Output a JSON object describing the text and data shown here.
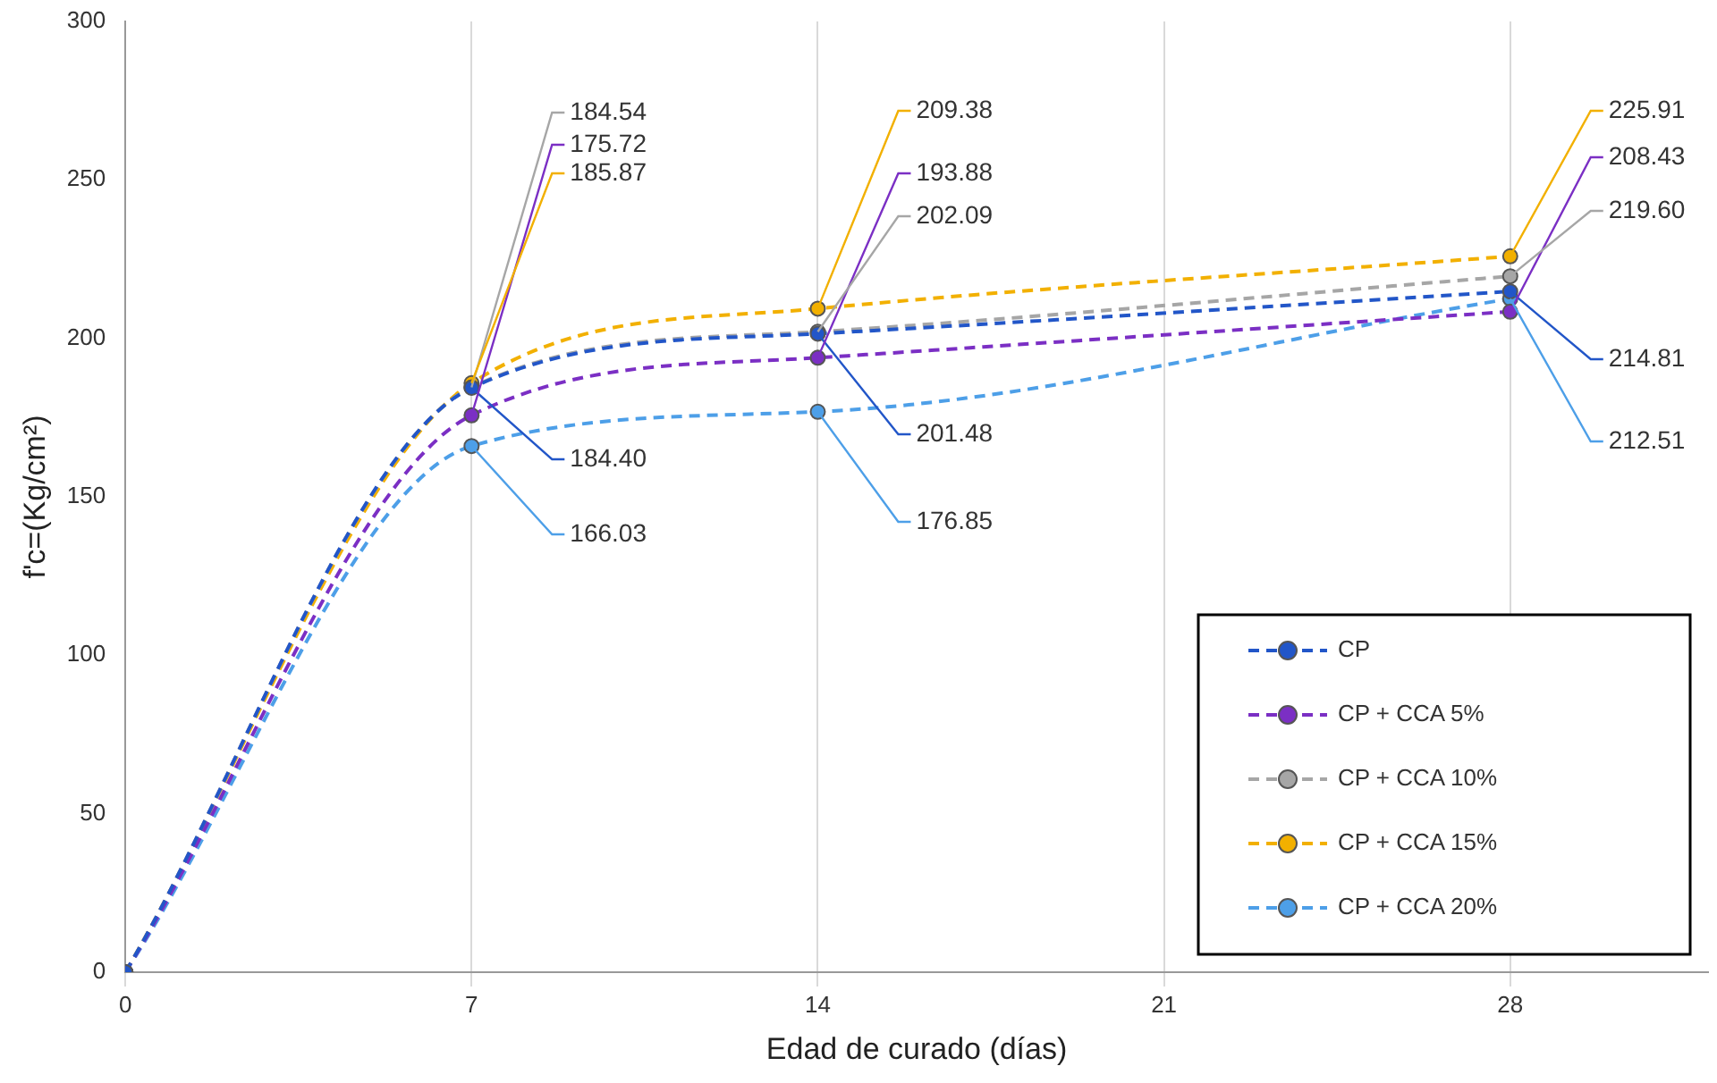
{
  "chart_data": {
    "type": "line",
    "xlabel": "Edad de curado (días)",
    "ylabel": "f'c=(Kg/cm²)",
    "x": [
      0,
      7,
      14,
      28
    ],
    "xlim": [
      0,
      32
    ],
    "xticks": [
      0,
      7,
      14,
      21,
      28
    ],
    "ylim": [
      0,
      300
    ],
    "yticks": [
      0,
      50,
      100,
      150,
      200,
      250,
      300
    ],
    "grid": "x",
    "legend": "bottom right",
    "marker": "circle",
    "line_style": "dashed",
    "series": [
      {
        "name": "CP",
        "color": "#2256c8",
        "values": [
          0,
          184.4,
          201.48,
          214.81
        ],
        "value_labels": [
          null,
          "184.40",
          "201.48",
          "214.81"
        ]
      },
      {
        "name": "CP + CCA 5%",
        "color": "#7b2fc4",
        "values": [
          0,
          175.72,
          193.88,
          208.43
        ],
        "value_labels": [
          null,
          "175.72",
          "193.88",
          "208.43"
        ]
      },
      {
        "name": "CP + CCA 10%",
        "color": "#a6a6a6",
        "values": [
          0,
          184.54,
          202.09,
          219.6
        ],
        "value_labels": [
          null,
          "184.54",
          "202.09",
          "219.60"
        ]
      },
      {
        "name": "CP + CCA 15%",
        "color": "#f2b000",
        "values": [
          0,
          185.87,
          209.38,
          225.91
        ],
        "value_labels": [
          null,
          "185.87",
          "209.38",
          "225.91"
        ]
      },
      {
        "name": "CP + CCA 20%",
        "color": "#4d9fe8",
        "values": [
          0,
          166.03,
          176.85,
          212.51
        ],
        "value_labels": [
          null,
          "166.03",
          "176.85",
          "212.51"
        ]
      }
    ]
  }
}
